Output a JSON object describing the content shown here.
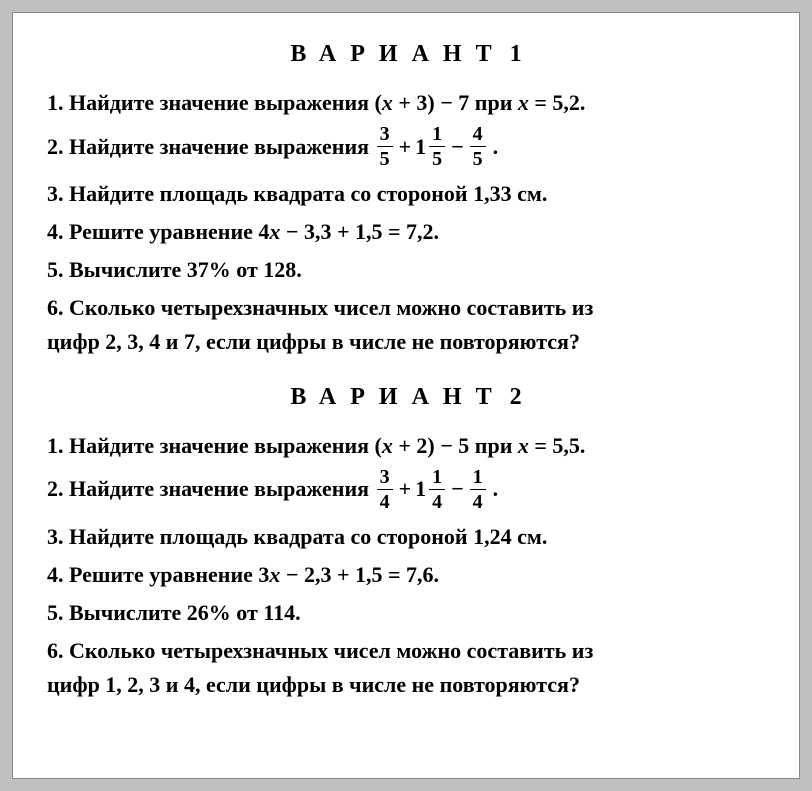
{
  "variants": [
    {
      "title": "ВАРИАНТ",
      "number": "1",
      "problems": {
        "p1_num": "1.",
        "p1_text_a": "Найдите значение выражения (",
        "p1_var": "x",
        "p1_text_b": " + 3) − 7 при ",
        "p1_var2": "x",
        "p1_text_c": " = 5,2.",
        "p2_num": "2.",
        "p2_text": "Найдите значение выражения ",
        "p2_f1n": "3",
        "p2_f1d": "5",
        "p2_op1": "+",
        "p2_mw": "1",
        "p2_f2n": "1",
        "p2_f2d": "5",
        "p2_op2": "−",
        "p2_f3n": "4",
        "p2_f3d": "5",
        "p3_num": "3.",
        "p3_text": "Найдите площадь квадрата со стороной 1,33 см.",
        "p4_num": "4.",
        "p4_text_a": "Решите уравнение 4",
        "p4_var": "x",
        "p4_text_b": " − 3,3 + 1,5 = 7,2.",
        "p5_num": "5.",
        "p5_text": "Вычислите 37% от 128.",
        "p6_num": "6.",
        "p6_line1": "Сколько четырехзначных чисел можно составить из",
        "p6_line2": "цифр 2, 3, 4 и 7, если цифры в числе не повторяются?"
      }
    },
    {
      "title": "ВАРИАНТ",
      "number": "2",
      "problems": {
        "p1_num": "1.",
        "p1_text_a": "Найдите значение выражения (",
        "p1_var": "x",
        "p1_text_b": " + 2) − 5 при ",
        "p1_var2": "x",
        "p1_text_c": " = 5,5.",
        "p2_num": "2.",
        "p2_text": "Найдите значение выражения ",
        "p2_f1n": "3",
        "p2_f1d": "4",
        "p2_op1": "+",
        "p2_mw": "1",
        "p2_f2n": "1",
        "p2_f2d": "4",
        "p2_op2": "−",
        "p2_f3n": "1",
        "p2_f3d": "4",
        "p3_num": "3.",
        "p3_text": "Найдите площадь квадрата со стороной 1,24 см.",
        "p4_num": "4.",
        "p4_text_a": "Решите уравнение 3",
        "p4_var": "x",
        "p4_text_b": " − 2,3 + 1,5 = 7,6.",
        "p5_num": "5.",
        "p5_text": "Вычислите 26% от 114.",
        "p6_num": "6.",
        "p6_line1": "Сколько четырехзначных чисел можно составить из",
        "p6_line2": "цифр  1, 2, 3 и 4, если цифры в числе не повторяются?"
      }
    }
  ]
}
